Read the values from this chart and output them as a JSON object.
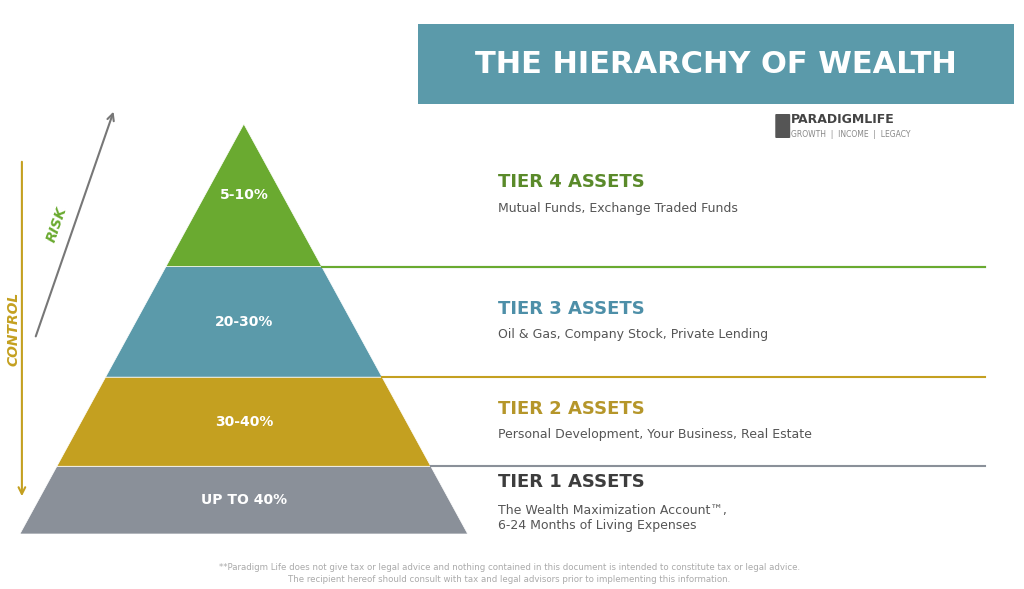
{
  "title": "THE HIERARCHY OF WEALTH",
  "title_bg_color": "#5b9aaa",
  "title_text_color": "#ffffff",
  "bg_color": "#ffffff",
  "tiers": [
    {
      "label": "TIER 1 ASSETS",
      "label_color": "#3d3d3d",
      "sublabel": "The Wealth Maximization Account™,\n6-24 Months of Living Expenses",
      "sublabel_color": "#555555",
      "percent": "UP TO 40%",
      "percent_color": "#ffffff",
      "fill_color": "#8a9099",
      "line_color": "#8a9099",
      "rank": 1
    },
    {
      "label": "TIER 2 ASSETS",
      "label_color": "#b5962a",
      "sublabel": "Personal Development, Your Business, Real Estate",
      "sublabel_color": "#555555",
      "percent": "30-40%",
      "percent_color": "#ffffff",
      "fill_color": "#c4a020",
      "line_color": "#c4a020",
      "rank": 2
    },
    {
      "label": "TIER 3 ASSETS",
      "label_color": "#4d8fa8",
      "sublabel": "Oil & Gas, Company Stock, Private Lending",
      "sublabel_color": "#555555",
      "percent": "20-30%",
      "percent_color": "#ffffff",
      "fill_color": "#5b9aaa",
      "line_color": "#5b9aaa",
      "rank": 3
    },
    {
      "label": "TIER 4 ASSETS",
      "label_color": "#5a8a2a",
      "sublabel": "Mutual Funds, Exchange Traded Funds",
      "sublabel_color": "#555555",
      "percent": "5-10%",
      "percent_color": "#ffffff",
      "fill_color": "#6aaa30",
      "line_color": "#6aaa30",
      "rank": 4
    }
  ],
  "arrow_risk_color": "#777777",
  "arrow_control_color": "#c4a020",
  "risk_label": "RISK",
  "control_label": "CONTROL",
  "risk_label_color": "#6aaa30",
  "control_label_color": "#c4a020",
  "disclaimer_line1": "**Paradigm Life does not give tax or legal advice and nothing contained in this document is intended to constitute tax or legal advice.",
  "disclaimer_line2": "The recipient hereof should consult with tax and legal advisors prior to implementing this information.",
  "disclaimer_color": "#aaaaaa",
  "paradigm_text": "PARADIGMLIFE",
  "paradigm_sub": "GROWTH  |  INCOME  |  LEGACY"
}
